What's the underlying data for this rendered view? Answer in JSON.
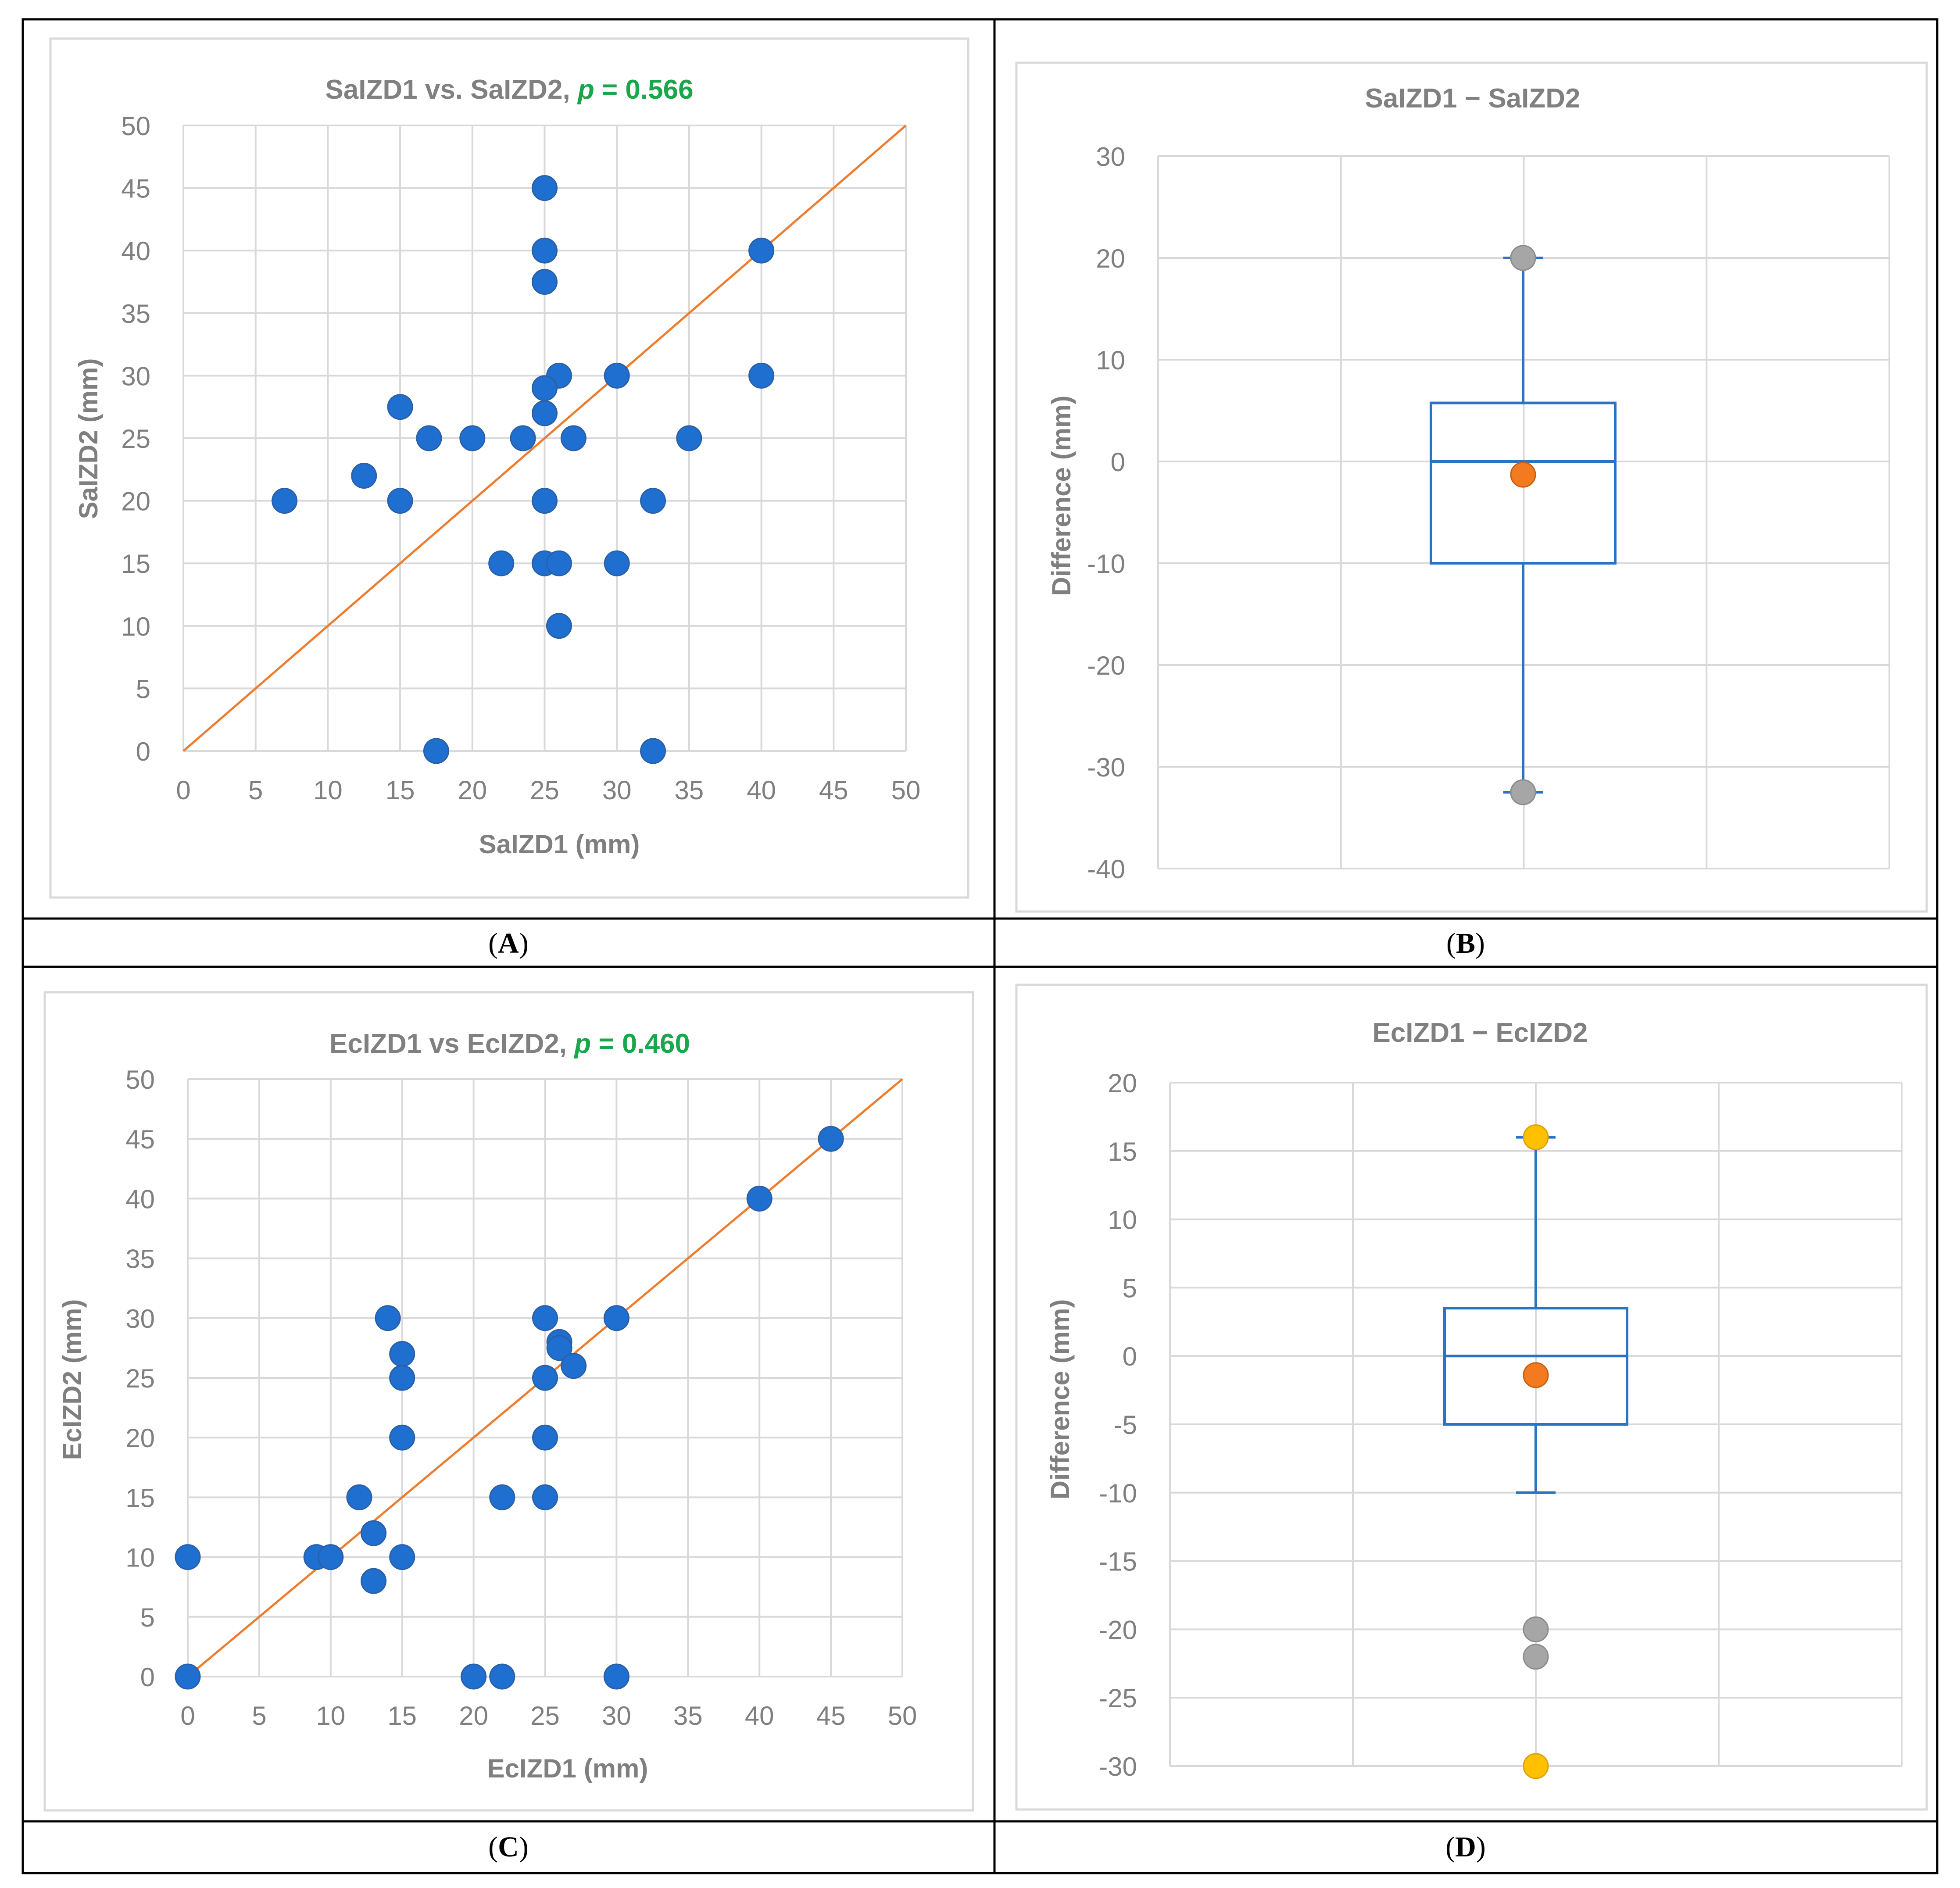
{
  "panels": [
    {
      "id": "A",
      "caption_open": "(",
      "caption_letter": "A",
      "caption_close": ")"
    },
    {
      "id": "B",
      "caption_open": "(",
      "caption_letter": "B",
      "caption_close": ")"
    },
    {
      "id": "C",
      "caption_open": "(",
      "caption_letter": "C",
      "caption_close": ")"
    },
    {
      "id": "D",
      "caption_open": "(",
      "caption_letter": "D",
      "caption_close": ")"
    }
  ],
  "colors": {
    "point_blue": "#1f6fd0",
    "box_blue": "#2a72c4",
    "identity_orange": "#ed7d31",
    "mean_orange": "#f47a20",
    "outlier_gray": "#a6a6a6",
    "outlier_yellow": "#ffc000",
    "grid": "#d9d9d9",
    "text_gray": "#7f7f7f",
    "title_gray": "#808080",
    "p_green": "#1aa64b",
    "border": "#000000"
  },
  "chart_data": [
    {
      "panel": "A",
      "type": "scatter",
      "title_main": "SaIZD1 vs. SaIZD2, ",
      "title_p_label": "p",
      "title_p_value": " = 0.566",
      "xlabel": "SaIZD1 (mm)",
      "ylabel": "SaIZD2 (mm)",
      "xlim": [
        0,
        50
      ],
      "ylim": [
        0,
        50
      ],
      "xticks": [
        "0",
        "5",
        "10",
        "15",
        "20",
        "25",
        "30",
        "35",
        "40",
        "45",
        "50"
      ],
      "yticks": [
        "0",
        "5",
        "10",
        "15",
        "20",
        "25",
        "30",
        "35",
        "40",
        "45",
        "50"
      ],
      "identity_line": {
        "from": [
          0,
          0
        ],
        "to": [
          50,
          50
        ]
      },
      "points": [
        [
          25,
          45
        ],
        [
          25,
          40
        ],
        [
          40,
          40
        ],
        [
          25,
          37.5
        ],
        [
          26,
          30
        ],
        [
          30,
          30
        ],
        [
          40,
          30
        ],
        [
          25,
          29
        ],
        [
          15,
          27.5
        ],
        [
          25,
          27
        ],
        [
          17,
          25
        ],
        [
          20,
          25
        ],
        [
          23.5,
          25
        ],
        [
          27,
          25
        ],
        [
          35,
          25
        ],
        [
          12.5,
          22
        ],
        [
          7,
          20
        ],
        [
          15,
          20
        ],
        [
          25,
          20
        ],
        [
          32.5,
          20
        ],
        [
          22,
          15
        ],
        [
          25,
          15
        ],
        [
          26,
          15
        ],
        [
          30,
          15
        ],
        [
          26,
          10
        ],
        [
          17.5,
          0
        ],
        [
          32.5,
          0
        ]
      ]
    },
    {
      "panel": "B",
      "type": "box",
      "title": "SaIZD1 − SaIZD2",
      "ylabel": "Difference (mm)",
      "ylim": [
        -40,
        30
      ],
      "yticks": [
        "-40",
        "-30",
        "-20",
        "-10",
        "0",
        "10",
        "20",
        "30"
      ],
      "box": {
        "whisker_low": -32.5,
        "q1": -10,
        "median": 0,
        "q3": 5.75,
        "whisker_high": 20,
        "mean": -1.3
      },
      "outliers_gray": [
        20,
        -32.5
      ],
      "outliers_yellow": []
    },
    {
      "panel": "C",
      "type": "scatter",
      "title_main": "EcIZD1 vs EcIZD2, ",
      "title_p_label": "p",
      "title_p_value": " = 0.460",
      "xlabel": "EcIZD1 (mm)",
      "ylabel": "EcIZD2 (mm)",
      "xlim": [
        0,
        50
      ],
      "ylim": [
        0,
        50
      ],
      "xticks": [
        "0",
        "5",
        "10",
        "15",
        "20",
        "25",
        "30",
        "35",
        "40",
        "45",
        "50"
      ],
      "yticks": [
        "0",
        "5",
        "10",
        "15",
        "20",
        "25",
        "30",
        "35",
        "40",
        "45",
        "50"
      ],
      "identity_line": {
        "from": [
          0,
          0
        ],
        "to": [
          50,
          50
        ]
      },
      "points": [
        [
          45,
          45
        ],
        [
          40,
          40
        ],
        [
          14,
          30
        ],
        [
          25,
          30
        ],
        [
          30,
          30
        ],
        [
          26,
          28
        ],
        [
          26,
          27.5
        ],
        [
          15,
          27
        ],
        [
          27,
          26
        ],
        [
          15,
          25
        ],
        [
          25,
          25
        ],
        [
          15,
          20
        ],
        [
          25,
          20
        ],
        [
          12,
          15
        ],
        [
          22,
          15
        ],
        [
          25,
          15
        ],
        [
          13,
          12
        ],
        [
          0,
          10
        ],
        [
          9,
          10
        ],
        [
          10,
          10
        ],
        [
          15,
          10
        ],
        [
          13,
          8
        ],
        [
          0,
          0
        ],
        [
          20,
          0
        ],
        [
          22,
          0
        ],
        [
          30,
          0
        ]
      ]
    },
    {
      "panel": "D",
      "type": "box",
      "title": "EcIZD1 − EcIZD2",
      "ylabel": "Difference (mm)",
      "ylim": [
        -30,
        20
      ],
      "yticks": [
        "-30",
        "-25",
        "-20",
        "-15",
        "-10",
        "-5",
        "0",
        "5",
        "10",
        "15",
        "20"
      ],
      "box": {
        "whisker_low": -10,
        "q1": -5,
        "median": 0,
        "q3": 3.5,
        "whisker_high": 16,
        "mean": -1.4
      },
      "outliers_gray": [
        -20,
        -22
      ],
      "outliers_yellow": [
        16,
        -30
      ]
    }
  ]
}
